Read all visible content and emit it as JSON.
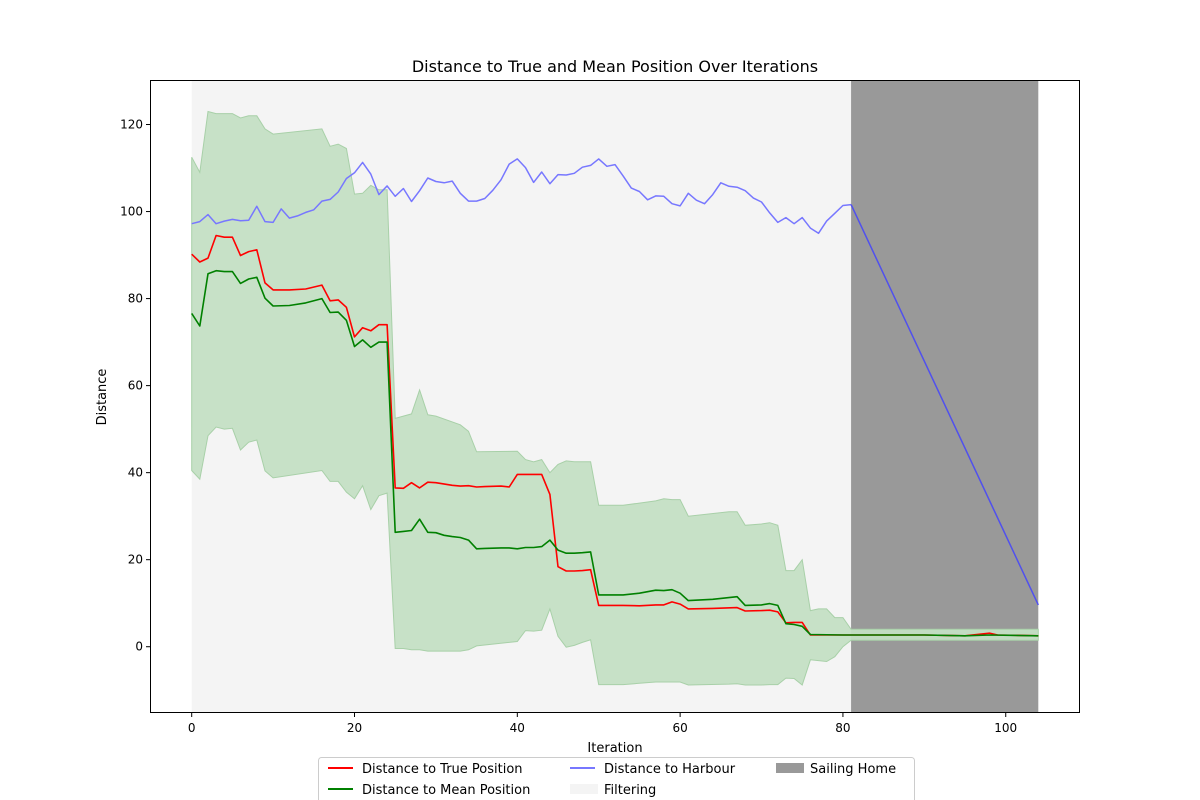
{
  "chart_data": {
    "type": "line",
    "title": "Distance to True and Mean Position Over Iterations",
    "xlabel": "Iteration",
    "ylabel": "Distance",
    "xlim": [
      -5,
      109
    ],
    "ylim": [
      -15,
      130
    ],
    "xticks": [
      0,
      20,
      40,
      60,
      80,
      100
    ],
    "yticks": [
      0,
      20,
      40,
      60,
      80,
      100,
      120
    ],
    "grid": false,
    "legend_placement": "bottom-center",
    "regions": [
      {
        "name": "Filtering",
        "x_start": 0,
        "x_end": 81,
        "color": "#f4f4f4"
      },
      {
        "name": "Sailing Home",
        "x_start": 81,
        "x_end": 104,
        "color": "#999999"
      }
    ],
    "band": {
      "name": "",
      "color": "#c4dfc4",
      "x": [
        0,
        1,
        2,
        3,
        4,
        5,
        6,
        7,
        8,
        9,
        10,
        16,
        17,
        18,
        19,
        20,
        21,
        22,
        23,
        24,
        25,
        26,
        27,
        28,
        29,
        30,
        33,
        34,
        35,
        40,
        41,
        42,
        43,
        44,
        45,
        46,
        47,
        48,
        49,
        50,
        53,
        55,
        57,
        58,
        59,
        60,
        61,
        66,
        67,
        68,
        70,
        71,
        72,
        73,
        74,
        75,
        76,
        77,
        78,
        79,
        80,
        81,
        104
      ],
      "upper": [
        112.5,
        109,
        123,
        122.5,
        122.5,
        122.5,
        121.5,
        122,
        122,
        119,
        117.8,
        119,
        115,
        115.5,
        114.5,
        104,
        104.2,
        106,
        105,
        105,
        52.5,
        53,
        53.5,
        59,
        53.3,
        53,
        51,
        49.5,
        44.8,
        44.9,
        43,
        42.5,
        43,
        40,
        41.9,
        42.7,
        42.5,
        42.5,
        42.5,
        32.5,
        32.5,
        33,
        33.5,
        34,
        33.8,
        33.8,
        30,
        31,
        31,
        27.9,
        28.2,
        28.5,
        27.9,
        17.5,
        17.5,
        20,
        8.3,
        8.7,
        8.7,
        6.7,
        6.7,
        4,
        4
      ],
      "lower": [
        40.5,
        38.5,
        48.5,
        50.5,
        50,
        50.2,
        45.2,
        47,
        47.5,
        40.4,
        38.8,
        40.5,
        38,
        38,
        35.5,
        34,
        37,
        31.5,
        34.7,
        35.3,
        -0.4,
        -0.4,
        -0.7,
        -0.7,
        -1,
        -1,
        -1,
        -0.7,
        0.2,
        1.2,
        3.7,
        3.6,
        3.8,
        8.7,
        2.4,
        -0.1,
        0.3,
        1,
        1.6,
        -8.7,
        -8.7,
        -8.4,
        -8.1,
        -8.1,
        -8.1,
        -8.1,
        -8.8,
        -8.6,
        -8.5,
        -8.8,
        -8.8,
        -8.7,
        -8.7,
        -7.2,
        -7.3,
        -8.8,
        -3,
        -3.2,
        -3.4,
        -2.3,
        0,
        1.5,
        1.5
      ]
    },
    "series": [
      {
        "name": "Distance to True Position",
        "color": "#ff0000",
        "x": [
          0,
          1,
          2,
          3,
          4,
          5,
          6,
          7,
          8,
          9,
          10,
          12,
          14,
          16,
          17,
          18,
          19,
          20,
          21,
          22,
          23,
          24,
          25,
          26,
          27,
          28,
          29,
          30,
          32,
          33,
          34,
          35,
          36,
          38,
          39,
          40,
          41,
          43,
          44,
          45,
          46,
          47,
          48,
          49,
          50,
          53,
          55,
          57,
          58,
          59,
          60,
          61,
          64,
          67,
          68,
          70,
          71,
          72,
          73,
          74,
          75,
          76,
          80,
          90,
          95,
          98,
          99,
          104
        ],
        "values": [
          90.2,
          88.4,
          89.3,
          94.5,
          94.1,
          94.1,
          89.9,
          90.8,
          91.2,
          83.6,
          82,
          82,
          82.2,
          83.1,
          79.5,
          79.7,
          78,
          71.2,
          73.3,
          72.6,
          74,
          74,
          36.5,
          36.4,
          37.7,
          36.5,
          37.8,
          37.7,
          37.1,
          36.9,
          37,
          36.7,
          36.8,
          36.9,
          36.7,
          39.6,
          39.6,
          39.6,
          35,
          18.4,
          17.4,
          17.4,
          17.5,
          17.7,
          9.5,
          9.5,
          9.4,
          9.6,
          9.6,
          10.3,
          9.8,
          8.7,
          8.8,
          9,
          8.2,
          8.3,
          8.4,
          8,
          5.5,
          5.6,
          5.6,
          2.7,
          2.7,
          2.7,
          2.5,
          3.1,
          2.7,
          2.5
        ]
      },
      {
        "name": "Distance to Mean Position",
        "color": "#008000",
        "x": [
          0,
          1,
          2,
          3,
          4,
          5,
          6,
          7,
          8,
          9,
          10,
          12,
          14,
          16,
          17,
          18,
          19,
          20,
          21,
          22,
          23,
          24,
          25,
          26,
          27,
          28,
          29,
          30,
          31,
          32,
          33,
          34,
          35,
          36,
          38,
          39,
          40,
          41,
          42,
          43,
          44,
          45,
          46,
          47,
          48,
          49,
          50,
          53,
          55,
          57,
          58,
          59,
          60,
          61,
          64,
          67,
          68,
          70,
          71,
          72,
          73,
          74,
          75,
          76,
          80,
          90,
          95,
          98,
          104
        ],
        "values": [
          76.6,
          73.7,
          85.7,
          86.4,
          86.2,
          86.2,
          83.5,
          84.5,
          84.9,
          80.1,
          78.3,
          78.4,
          79,
          80,
          76.8,
          76.9,
          75,
          69,
          70.5,
          68.8,
          70,
          70,
          26.3,
          26.5,
          26.7,
          29.3,
          26.3,
          26.2,
          25.6,
          25.3,
          25.1,
          24.5,
          22.5,
          22.6,
          22.7,
          22.7,
          22.5,
          22.8,
          22.8,
          23,
          24.5,
          22.2,
          21.5,
          21.5,
          21.6,
          21.8,
          11.9,
          11.9,
          12.3,
          13,
          12.9,
          13.1,
          12.3,
          10.6,
          10.9,
          11.5,
          9.5,
          9.6,
          9.9,
          9.5,
          5.3,
          5.1,
          4.7,
          2.8,
          2.7,
          2.7,
          2.5,
          2.7,
          2.5
        ]
      },
      {
        "name": "Distance to Harbour",
        "color": "#7777ff",
        "home_color": "#5050ee",
        "x": [
          0,
          1,
          2,
          3,
          4,
          5,
          6,
          7,
          8,
          9,
          10,
          11,
          12,
          13,
          14,
          15,
          16,
          17,
          18,
          19,
          20,
          21,
          22,
          23,
          24,
          25,
          26,
          27,
          28,
          29,
          30,
          31,
          32,
          33,
          34,
          35,
          36,
          37,
          38,
          39,
          40,
          41,
          42,
          43,
          44,
          45,
          46,
          47,
          48,
          49,
          50,
          51,
          52,
          53,
          54,
          55,
          56,
          57,
          58,
          59,
          60,
          61,
          62,
          63,
          64,
          65,
          66,
          67,
          68,
          69,
          70,
          71,
          72,
          73,
          74,
          75,
          76,
          77,
          78,
          79,
          80,
          81,
          104
        ],
        "values": [
          97.2,
          97.7,
          99.3,
          97.2,
          97.8,
          98.2,
          97.9,
          98,
          101.2,
          97.7,
          97.5,
          100.6,
          98.5,
          99,
          99.8,
          100.4,
          102.4,
          102.8,
          104.5,
          107.6,
          108.9,
          111.3,
          108.6,
          103.9,
          105.9,
          103.5,
          105.3,
          102.3,
          104.8,
          107.7,
          106.9,
          106.6,
          107,
          104.2,
          102.4,
          102.4,
          103,
          104.9,
          107.3,
          110.9,
          112.1,
          110.1,
          106.7,
          109.1,
          106.4,
          108.5,
          108.4,
          108.8,
          110.2,
          110.6,
          112.1,
          110.4,
          110.8,
          108.2,
          105.4,
          104.6,
          102.7,
          103.6,
          103.5,
          101.8,
          101.3,
          104.2,
          102.6,
          101.8,
          103.9,
          106.6,
          105.8,
          105.6,
          104.8,
          103.1,
          102.2,
          99.7,
          97.5,
          98.6,
          97.2,
          98.6,
          96.2,
          95,
          97.8,
          99.6,
          101.4,
          101.6,
          9.6
        ]
      }
    ],
    "legend": [
      {
        "label": "Distance to True Position",
        "kind": "line",
        "color": "#ff0000"
      },
      {
        "label": "Distance to Mean Position",
        "kind": "line",
        "color": "#008000"
      },
      {
        "label": "Distance to Harbour",
        "kind": "line",
        "color": "#7777ff"
      },
      {
        "label": "Filtering",
        "kind": "patch",
        "color": "#f4f4f4"
      },
      {
        "label": "Sailing Home",
        "kind": "patch",
        "color": "#999999"
      }
    ]
  }
}
